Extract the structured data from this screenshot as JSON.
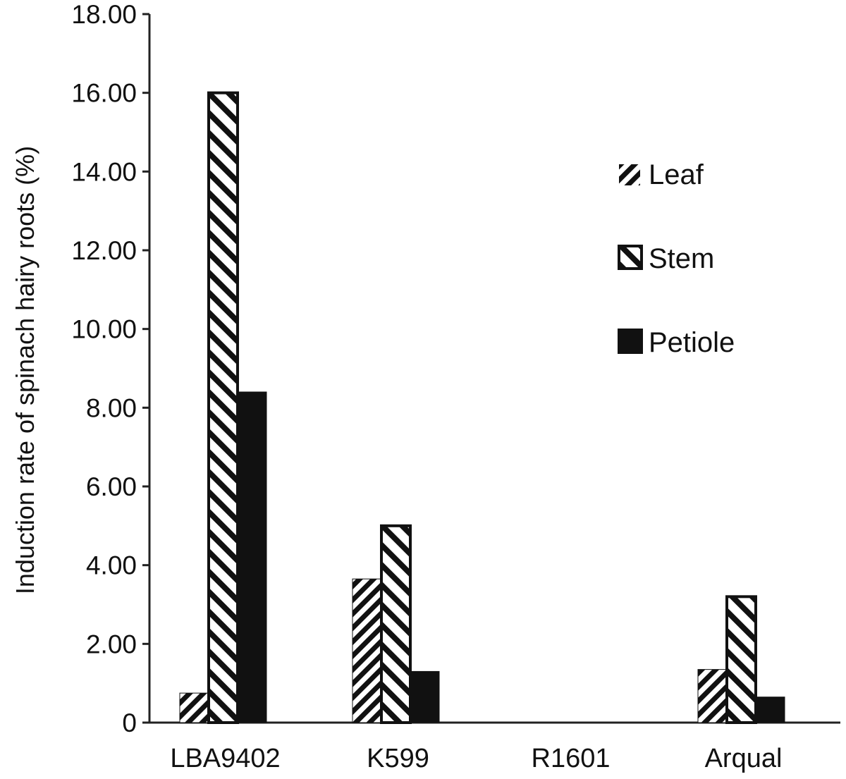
{
  "chart_data": {
    "type": "bar",
    "title": "",
    "xlabel": "",
    "ylabel": "Induction rate of spinach hairy roots (%)",
    "categories": [
      "LBA9402",
      "K599",
      "R1601",
      "Arqual"
    ],
    "series": [
      {
        "name": "Leaf",
        "values": [
          0.75,
          3.65,
          0.0,
          1.35
        ],
        "pattern": "fine-diagonal-up"
      },
      {
        "name": "Stem",
        "values": [
          16.0,
          5.0,
          0.0,
          3.2
        ],
        "pattern": "wide-diagonal-down"
      },
      {
        "name": "Petiole",
        "values": [
          8.4,
          1.3,
          0.0,
          0.65
        ],
        "pattern": "solid"
      }
    ],
    "ylim": [
      0,
      18
    ],
    "yticks": [
      "0",
      "2.00",
      "4.00",
      "6.00",
      "8.00",
      "10.00",
      "12.00",
      "14.00",
      "16.00",
      "18.00"
    ],
    "grid": false,
    "legend_position": "top-right",
    "colors": {
      "bar": "#111111",
      "background": "#ffffff",
      "axis": "#222222"
    }
  }
}
